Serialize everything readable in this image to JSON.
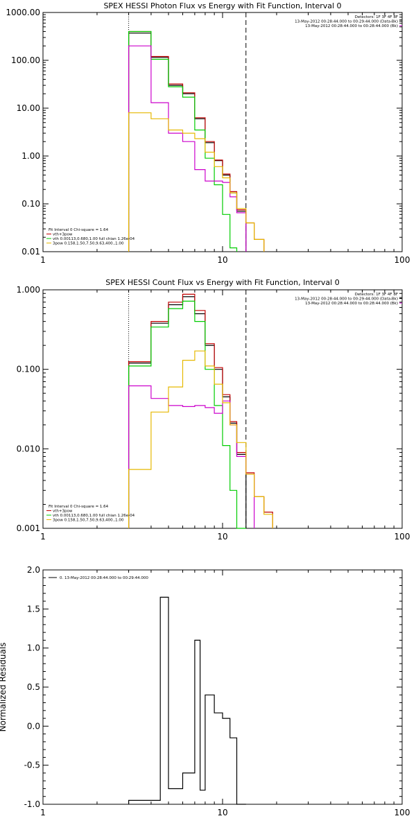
{
  "chart_data": [
    {
      "type": "line",
      "title": "SPEX HESSI Photon Flux vs Energy with Fit Function, Interval 0",
      "xscale": "log",
      "yscale": "log",
      "xlim": [
        1,
        100
      ],
      "ylim": [
        0.01,
        1000
      ],
      "xticks": [
        "1",
        "10",
        "100"
      ],
      "yticks": [
        "0.01",
        "0.10",
        "1.00",
        "10.00",
        "100.00",
        "1000.00"
      ],
      "xlabel": "",
      "ylabel": "",
      "vlines": [
        {
          "x": 3,
          "style": "dotted"
        },
        {
          "x": 13.5,
          "style": "dashed"
        }
      ],
      "info_top_right": [
        "Detectors: 1F 3F 4F 8F",
        "13-May-2012 00:28:44.000 to 00:29:44.000 (Data-Bk)",
        "13-May-2012 00:28:44.000 to 00:28:44.000 (Bk)"
      ],
      "info_bottom_left": [
        "Fit Interval 0   Chi-square = 1.64",
        "vth+3pow",
        "vth 0.00113,0.680,1.00  full chian 1.26e-04",
        "3pow 0.158,1.50,7.50,9.63,400.,1.00"
      ],
      "bin_edges": [
        3,
        4,
        5,
        6,
        7,
        8,
        9,
        10,
        11,
        12,
        13.5,
        15,
        17
      ],
      "series": [
        {
          "color": "#000000",
          "values": [
            370,
            115,
            30,
            20,
            6,
            1.9,
            0.8,
            0.4,
            0.17,
            0.07,
            null,
            null
          ]
        },
        {
          "color": "#c00000",
          "values": [
            400,
            120,
            32,
            21,
            6.3,
            2.0,
            0.82,
            0.42,
            0.18,
            0.075,
            0.04,
            0.018
          ]
        },
        {
          "color": "#00cc00",
          "values": [
            400,
            105,
            28,
            17,
            3.5,
            0.9,
            0.25,
            0.06,
            0.012,
            null,
            null,
            null
          ]
        },
        {
          "color": "#cc00cc",
          "values": [
            200,
            13,
            3,
            2,
            0.52,
            0.3,
            0.3,
            0.28,
            0.14,
            0.065,
            null,
            null
          ]
        },
        {
          "color": "#e6b800",
          "values": [
            8,
            6,
            3.5,
            3,
            2.3,
            1.2,
            0.6,
            0.35,
            0.17,
            0.08,
            0.04,
            0.018
          ]
        }
      ]
    },
    {
      "type": "line",
      "title": "SPEX HESSI Count Flux vs Energy with Fit Function, Interval 0",
      "xscale": "log",
      "yscale": "log",
      "xlim": [
        1,
        100
      ],
      "ylim": [
        0.001,
        1
      ],
      "xticks": [
        "1",
        "10",
        "100"
      ],
      "yticks": [
        "0.001",
        "0.010",
        "0.100",
        "1.000"
      ],
      "xlabel": "",
      "ylabel": "",
      "vlines": [
        {
          "x": 3,
          "style": "dotted"
        },
        {
          "x": 13.5,
          "style": "dashed"
        }
      ],
      "info_top_right": [
        "Detectors: 1F 3F 4F 8F",
        "13-May-2012 00:28:44.000 to 00:29:44.000 (Data-Bk)",
        "13-May-2012 00:28:44.000 to 00:28:44.000 (Bk)"
      ],
      "info_bottom_left": [
        "Fit Interval 0   Chi-square = 1.64",
        "vth+3pow",
        "vth 0.00113,0.680,1.00  full chian 1.26e-04",
        "3pow 0.158,1.50,7.50,9.63,400.,1.00"
      ],
      "bin_edges": [
        3,
        4,
        5,
        6,
        7,
        8,
        9,
        10,
        11,
        12,
        13.5,
        15,
        17,
        19
      ],
      "series": [
        {
          "color": "#000000",
          "values": [
            0.12,
            0.38,
            0.65,
            0.82,
            0.5,
            0.2,
            0.1,
            0.045,
            0.021,
            0.0085,
            null,
            null,
            null
          ]
        },
        {
          "color": "#c00000",
          "values": [
            0.125,
            0.4,
            0.7,
            0.88,
            0.55,
            0.21,
            0.105,
            0.048,
            0.022,
            0.009,
            0.005,
            0.0025,
            0.0016
          ]
        },
        {
          "color": "#00cc00",
          "values": [
            0.11,
            0.34,
            0.58,
            0.72,
            0.4,
            0.1,
            0.035,
            0.011,
            0.003,
            0.001,
            null,
            null,
            null
          ]
        },
        {
          "color": "#cc00cc",
          "values": [
            0.062,
            0.043,
            0.035,
            0.034,
            0.035,
            0.033,
            0.028,
            0.04,
            0.02,
            0.008,
            0.0048,
            null,
            null
          ]
        },
        {
          "color": "#e6b800",
          "values": [
            0.0055,
            0.029,
            0.06,
            0.13,
            0.17,
            0.11,
            0.065,
            0.038,
            0.02,
            0.012,
            0.0048,
            0.0025,
            0.0015
          ]
        }
      ]
    },
    {
      "type": "line",
      "title": "",
      "xscale": "log",
      "yscale": "linear",
      "xlim": [
        1,
        100
      ],
      "ylim": [
        -1.0,
        2.0
      ],
      "xticks": [
        "1",
        "10",
        "100"
      ],
      "yticks": [
        "-1.0",
        "-0.5",
        "0.0",
        "0.5",
        "1.0",
        "1.5",
        "2.0"
      ],
      "xlabel": "",
      "ylabel": "Normalized Residuals",
      "legend": "0. 13-May-2012 00:28:44.000 to 00:29:44.000",
      "bin_edges": [
        3,
        4,
        4.5,
        5,
        6,
        7,
        7.5,
        8,
        9,
        10,
        11,
        12,
        13.5
      ],
      "series": [
        {
          "color": "#000000",
          "values": [
            -0.95,
            -0.95,
            1.65,
            -0.8,
            -0.6,
            1.1,
            -0.82,
            0.4,
            0.17,
            0.1,
            -0.15,
            -1.0
          ]
        }
      ]
    }
  ]
}
